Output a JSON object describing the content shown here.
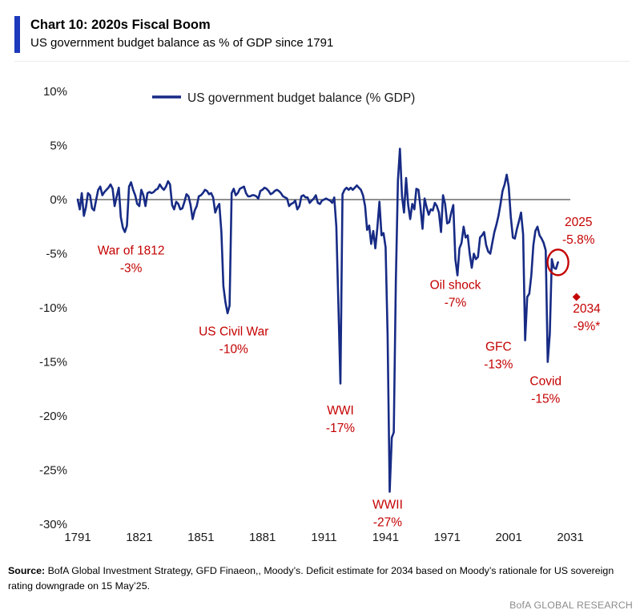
{
  "header": {
    "title": "Chart 10: 2020s Fiscal Boom",
    "subtitle": "US government budget balance as % of GDP since 1791"
  },
  "colors": {
    "accent_blue": "#1C39BB",
    "line_navy": "#172B85",
    "annotation_red": "#C40000",
    "zero_line": "#4d4d4d",
    "research_gray": "#8c8c8c"
  },
  "chart_data": {
    "type": "line",
    "title": "Chart 10: 2020s Fiscal Boom",
    "subtitle": "US government budget balance as % of GDP since 1791",
    "legend": "US government budget balance (% GDP)",
    "legend_position": "top-inside",
    "grid": false,
    "xlabel": "",
    "ylabel": "",
    "xlim": [
      1791,
      2031
    ],
    "ylim": [
      -30,
      10
    ],
    "x_ticks": [
      1791,
      1821,
      1851,
      1881,
      1911,
      1941,
      1971,
      2001,
      2031
    ],
    "y_ticks": [
      10,
      5,
      0,
      -5,
      -10,
      -15,
      -20,
      -25,
      -30
    ],
    "y_tick_labels": [
      "10%",
      "5%",
      "0%",
      "-5%",
      "-10%",
      "-15%",
      "-20%",
      "-25%",
      "-30%"
    ],
    "series": [
      {
        "name": "US government budget balance (% GDP)",
        "points": [
          [
            1791,
            0.0
          ],
          [
            1792,
            -0.9
          ],
          [
            1793,
            0.6
          ],
          [
            1794,
            -1.5
          ],
          [
            1795,
            -0.7
          ],
          [
            1796,
            0.6
          ],
          [
            1797,
            0.4
          ],
          [
            1798,
            -0.8
          ],
          [
            1799,
            -1.0
          ],
          [
            1800,
            0.0
          ],
          [
            1801,
            0.9
          ],
          [
            1802,
            1.2
          ],
          [
            1803,
            0.4
          ],
          [
            1804,
            0.7
          ],
          [
            1805,
            0.9
          ],
          [
            1806,
            1.1
          ],
          [
            1807,
            1.4
          ],
          [
            1808,
            1.0
          ],
          [
            1809,
            -0.6
          ],
          [
            1810,
            0.3
          ],
          [
            1811,
            1.1
          ],
          [
            1812,
            -1.6
          ],
          [
            1813,
            -2.6
          ],
          [
            1814,
            -3.0
          ],
          [
            1815,
            -2.4
          ],
          [
            1816,
            1.2
          ],
          [
            1817,
            1.6
          ],
          [
            1818,
            0.9
          ],
          [
            1819,
            0.4
          ],
          [
            1820,
            -0.4
          ],
          [
            1821,
            -0.6
          ],
          [
            1822,
            0.9
          ],
          [
            1823,
            0.4
          ],
          [
            1824,
            -0.6
          ],
          [
            1825,
            0.6
          ],
          [
            1826,
            0.7
          ],
          [
            1827,
            0.6
          ],
          [
            1828,
            0.7
          ],
          [
            1829,
            0.9
          ],
          [
            1830,
            1.0
          ],
          [
            1831,
            1.4
          ],
          [
            1832,
            1.1
          ],
          [
            1833,
            0.9
          ],
          [
            1834,
            1.2
          ],
          [
            1835,
            1.7
          ],
          [
            1836,
            1.4
          ],
          [
            1837,
            -0.5
          ],
          [
            1838,
            -0.9
          ],
          [
            1839,
            -0.2
          ],
          [
            1840,
            -0.4
          ],
          [
            1841,
            -0.9
          ],
          [
            1842,
            -0.8
          ],
          [
            1843,
            -0.2
          ],
          [
            1844,
            0.5
          ],
          [
            1845,
            0.3
          ],
          [
            1846,
            -0.5
          ],
          [
            1847,
            -1.8
          ],
          [
            1848,
            -1.0
          ],
          [
            1849,
            -0.6
          ],
          [
            1850,
            0.3
          ],
          [
            1851,
            0.4
          ],
          [
            1852,
            0.6
          ],
          [
            1853,
            0.9
          ],
          [
            1854,
            0.8
          ],
          [
            1855,
            0.5
          ],
          [
            1856,
            0.6
          ],
          [
            1857,
            0.2
          ],
          [
            1858,
            -1.2
          ],
          [
            1859,
            -0.7
          ],
          [
            1860,
            -0.4
          ],
          [
            1861,
            -3.0
          ],
          [
            1862,
            -8.0
          ],
          [
            1863,
            -9.5
          ],
          [
            1864,
            -10.5
          ],
          [
            1865,
            -9.8
          ],
          [
            1866,
            0.6
          ],
          [
            1867,
            1.0
          ],
          [
            1868,
            0.4
          ],
          [
            1869,
            0.6
          ],
          [
            1870,
            1.0
          ],
          [
            1871,
            1.1
          ],
          [
            1872,
            1.2
          ],
          [
            1873,
            0.6
          ],
          [
            1874,
            0.3
          ],
          [
            1875,
            0.3
          ],
          [
            1876,
            0.4
          ],
          [
            1877,
            0.4
          ],
          [
            1878,
            0.3
          ],
          [
            1879,
            0.1
          ],
          [
            1880,
            0.8
          ],
          [
            1881,
            0.9
          ],
          [
            1882,
            1.1
          ],
          [
            1883,
            1.0
          ],
          [
            1884,
            0.8
          ],
          [
            1885,
            0.5
          ],
          [
            1886,
            0.6
          ],
          [
            1887,
            0.8
          ],
          [
            1888,
            0.9
          ],
          [
            1889,
            0.8
          ],
          [
            1890,
            0.6
          ],
          [
            1891,
            0.3
          ],
          [
            1892,
            0.2
          ],
          [
            1893,
            0.1
          ],
          [
            1894,
            -0.6
          ],
          [
            1895,
            -0.4
          ],
          [
            1896,
            -0.3
          ],
          [
            1897,
            -0.1
          ],
          [
            1898,
            -0.9
          ],
          [
            1899,
            -0.6
          ],
          [
            1900,
            0.3
          ],
          [
            1901,
            0.4
          ],
          [
            1902,
            0.2
          ],
          [
            1903,
            0.2
          ],
          [
            1904,
            -0.3
          ],
          [
            1905,
            -0.1
          ],
          [
            1906,
            0.1
          ],
          [
            1907,
            0.4
          ],
          [
            1908,
            -0.3
          ],
          [
            1909,
            -0.4
          ],
          [
            1910,
            -0.1
          ],
          [
            1911,
            0.0
          ],
          [
            1912,
            0.1
          ],
          [
            1913,
            0.0
          ],
          [
            1914,
            -0.1
          ],
          [
            1915,
            -0.3
          ],
          [
            1916,
            0.2
          ],
          [
            1917,
            -2.5
          ],
          [
            1918,
            -9.5
          ],
          [
            1919,
            -17.0
          ],
          [
            1920,
            0.5
          ],
          [
            1921,
            0.9
          ],
          [
            1922,
            1.1
          ],
          [
            1923,
            0.9
          ],
          [
            1924,
            1.1
          ],
          [
            1925,
            0.9
          ],
          [
            1926,
            1.1
          ],
          [
            1927,
            1.3
          ],
          [
            1928,
            1.1
          ],
          [
            1929,
            0.9
          ],
          [
            1930,
            0.4
          ],
          [
            1931,
            -0.6
          ],
          [
            1932,
            -2.8
          ],
          [
            1933,
            -2.4
          ],
          [
            1934,
            -4.1
          ],
          [
            1935,
            -2.9
          ],
          [
            1936,
            -4.5
          ],
          [
            1937,
            -2.6
          ],
          [
            1938,
            -0.2
          ],
          [
            1939,
            -3.3
          ],
          [
            1940,
            -3.1
          ],
          [
            1941,
            -4.4
          ],
          [
            1942,
            -12.5
          ],
          [
            1943,
            -27.0
          ],
          [
            1944,
            -22.0
          ],
          [
            1945,
            -21.5
          ],
          [
            1946,
            -7.5
          ],
          [
            1947,
            1.8
          ],
          [
            1948,
            4.7
          ],
          [
            1949,
            0.3
          ],
          [
            1950,
            -1.2
          ],
          [
            1951,
            2.0
          ],
          [
            1952,
            -0.5
          ],
          [
            1953,
            -1.8
          ],
          [
            1954,
            -0.4
          ],
          [
            1955,
            -0.9
          ],
          [
            1956,
            1.0
          ],
          [
            1957,
            0.9
          ],
          [
            1958,
            -0.7
          ],
          [
            1959,
            -2.7
          ],
          [
            1960,
            0.1
          ],
          [
            1961,
            -0.7
          ],
          [
            1962,
            -1.4
          ],
          [
            1963,
            -0.9
          ],
          [
            1964,
            -1.0
          ],
          [
            1965,
            -0.3
          ],
          [
            1966,
            -0.6
          ],
          [
            1967,
            -1.2
          ],
          [
            1968,
            -3.0
          ],
          [
            1969,
            0.4
          ],
          [
            1970,
            -0.4
          ],
          [
            1971,
            -2.2
          ],
          [
            1972,
            -2.1
          ],
          [
            1973,
            -1.2
          ],
          [
            1974,
            -0.5
          ],
          [
            1975,
            -5.5
          ],
          [
            1976,
            -7.0
          ],
          [
            1977,
            -4.5
          ],
          [
            1978,
            -4.0
          ],
          [
            1979,
            -2.5
          ],
          [
            1980,
            -3.5
          ],
          [
            1981,
            -3.3
          ],
          [
            1982,
            -5.0
          ],
          [
            1983,
            -6.3
          ],
          [
            1984,
            -5.0
          ],
          [
            1985,
            -5.5
          ],
          [
            1986,
            -5.3
          ],
          [
            1987,
            -3.5
          ],
          [
            1988,
            -3.3
          ],
          [
            1989,
            -3.0
          ],
          [
            1990,
            -4.2
          ],
          [
            1991,
            -4.8
          ],
          [
            1992,
            -5.0
          ],
          [
            1993,
            -4.0
          ],
          [
            1994,
            -3.0
          ],
          [
            1995,
            -2.3
          ],
          [
            1996,
            -1.5
          ],
          [
            1997,
            -0.4
          ],
          [
            1998,
            0.8
          ],
          [
            1999,
            1.4
          ],
          [
            2000,
            2.3
          ],
          [
            2001,
            1.2
          ],
          [
            2002,
            -1.6
          ],
          [
            2003,
            -3.5
          ],
          [
            2004,
            -3.6
          ],
          [
            2005,
            -2.7
          ],
          [
            2006,
            -2.0
          ],
          [
            2007,
            -1.2
          ],
          [
            2008,
            -3.2
          ],
          [
            2009,
            -13.0
          ],
          [
            2010,
            -9.0
          ],
          [
            2011,
            -8.7
          ],
          [
            2012,
            -7.0
          ],
          [
            2013,
            -4.2
          ],
          [
            2014,
            -2.9
          ],
          [
            2015,
            -2.5
          ],
          [
            2016,
            -3.3
          ],
          [
            2017,
            -3.6
          ],
          [
            2018,
            -4.0
          ],
          [
            2019,
            -4.7
          ],
          [
            2020,
            -15.0
          ],
          [
            2021,
            -12.4
          ],
          [
            2022,
            -5.5
          ],
          [
            2023,
            -6.3
          ],
          [
            2024,
            -6.4
          ],
          [
            2025,
            -5.8
          ]
        ]
      }
    ],
    "forecast_point": {
      "year": 2034,
      "value": -9,
      "marker": "diamond"
    },
    "highlight_circle": {
      "year": 2025,
      "value": -5.8
    },
    "annotations": [
      {
        "lines": [
          "War of 1812",
          "-3%"
        ],
        "year": 1817,
        "value": -5.5
      },
      {
        "lines": [
          "US Civil War",
          "-10%"
        ],
        "year": 1867,
        "value": -13.0
      },
      {
        "lines": [
          "WWI",
          "-17%"
        ],
        "year": 1919,
        "value": -20.3
      },
      {
        "lines": [
          "WWII",
          "-27%"
        ],
        "year": 1942,
        "value": -29.0
      },
      {
        "lines": [
          "Oil shock",
          "-7%"
        ],
        "year": 1975,
        "value": -8.7
      },
      {
        "lines": [
          "GFC",
          "-13%"
        ],
        "year": 1996,
        "value": -14.4
      },
      {
        "lines": [
          "Covid",
          "-15%"
        ],
        "year": 2019,
        "value": -17.6
      },
      {
        "lines": [
          "2025",
          "-5.8%"
        ],
        "year": 2035,
        "value": -2.9
      },
      {
        "lines": [
          "2034",
          "-9%*"
        ],
        "year": 2039,
        "value": -10.9
      }
    ]
  },
  "footer": {
    "source_label": "Source:",
    "source_text": " BofA Global Investment Strategy, GFD Finaeon,, Moody’s. Deficit estimate for 2034 based on Moody’s rationale for US sovereign rating downgrade on 15 May’25.",
    "brand": "BofA GLOBAL RESEARCH"
  }
}
